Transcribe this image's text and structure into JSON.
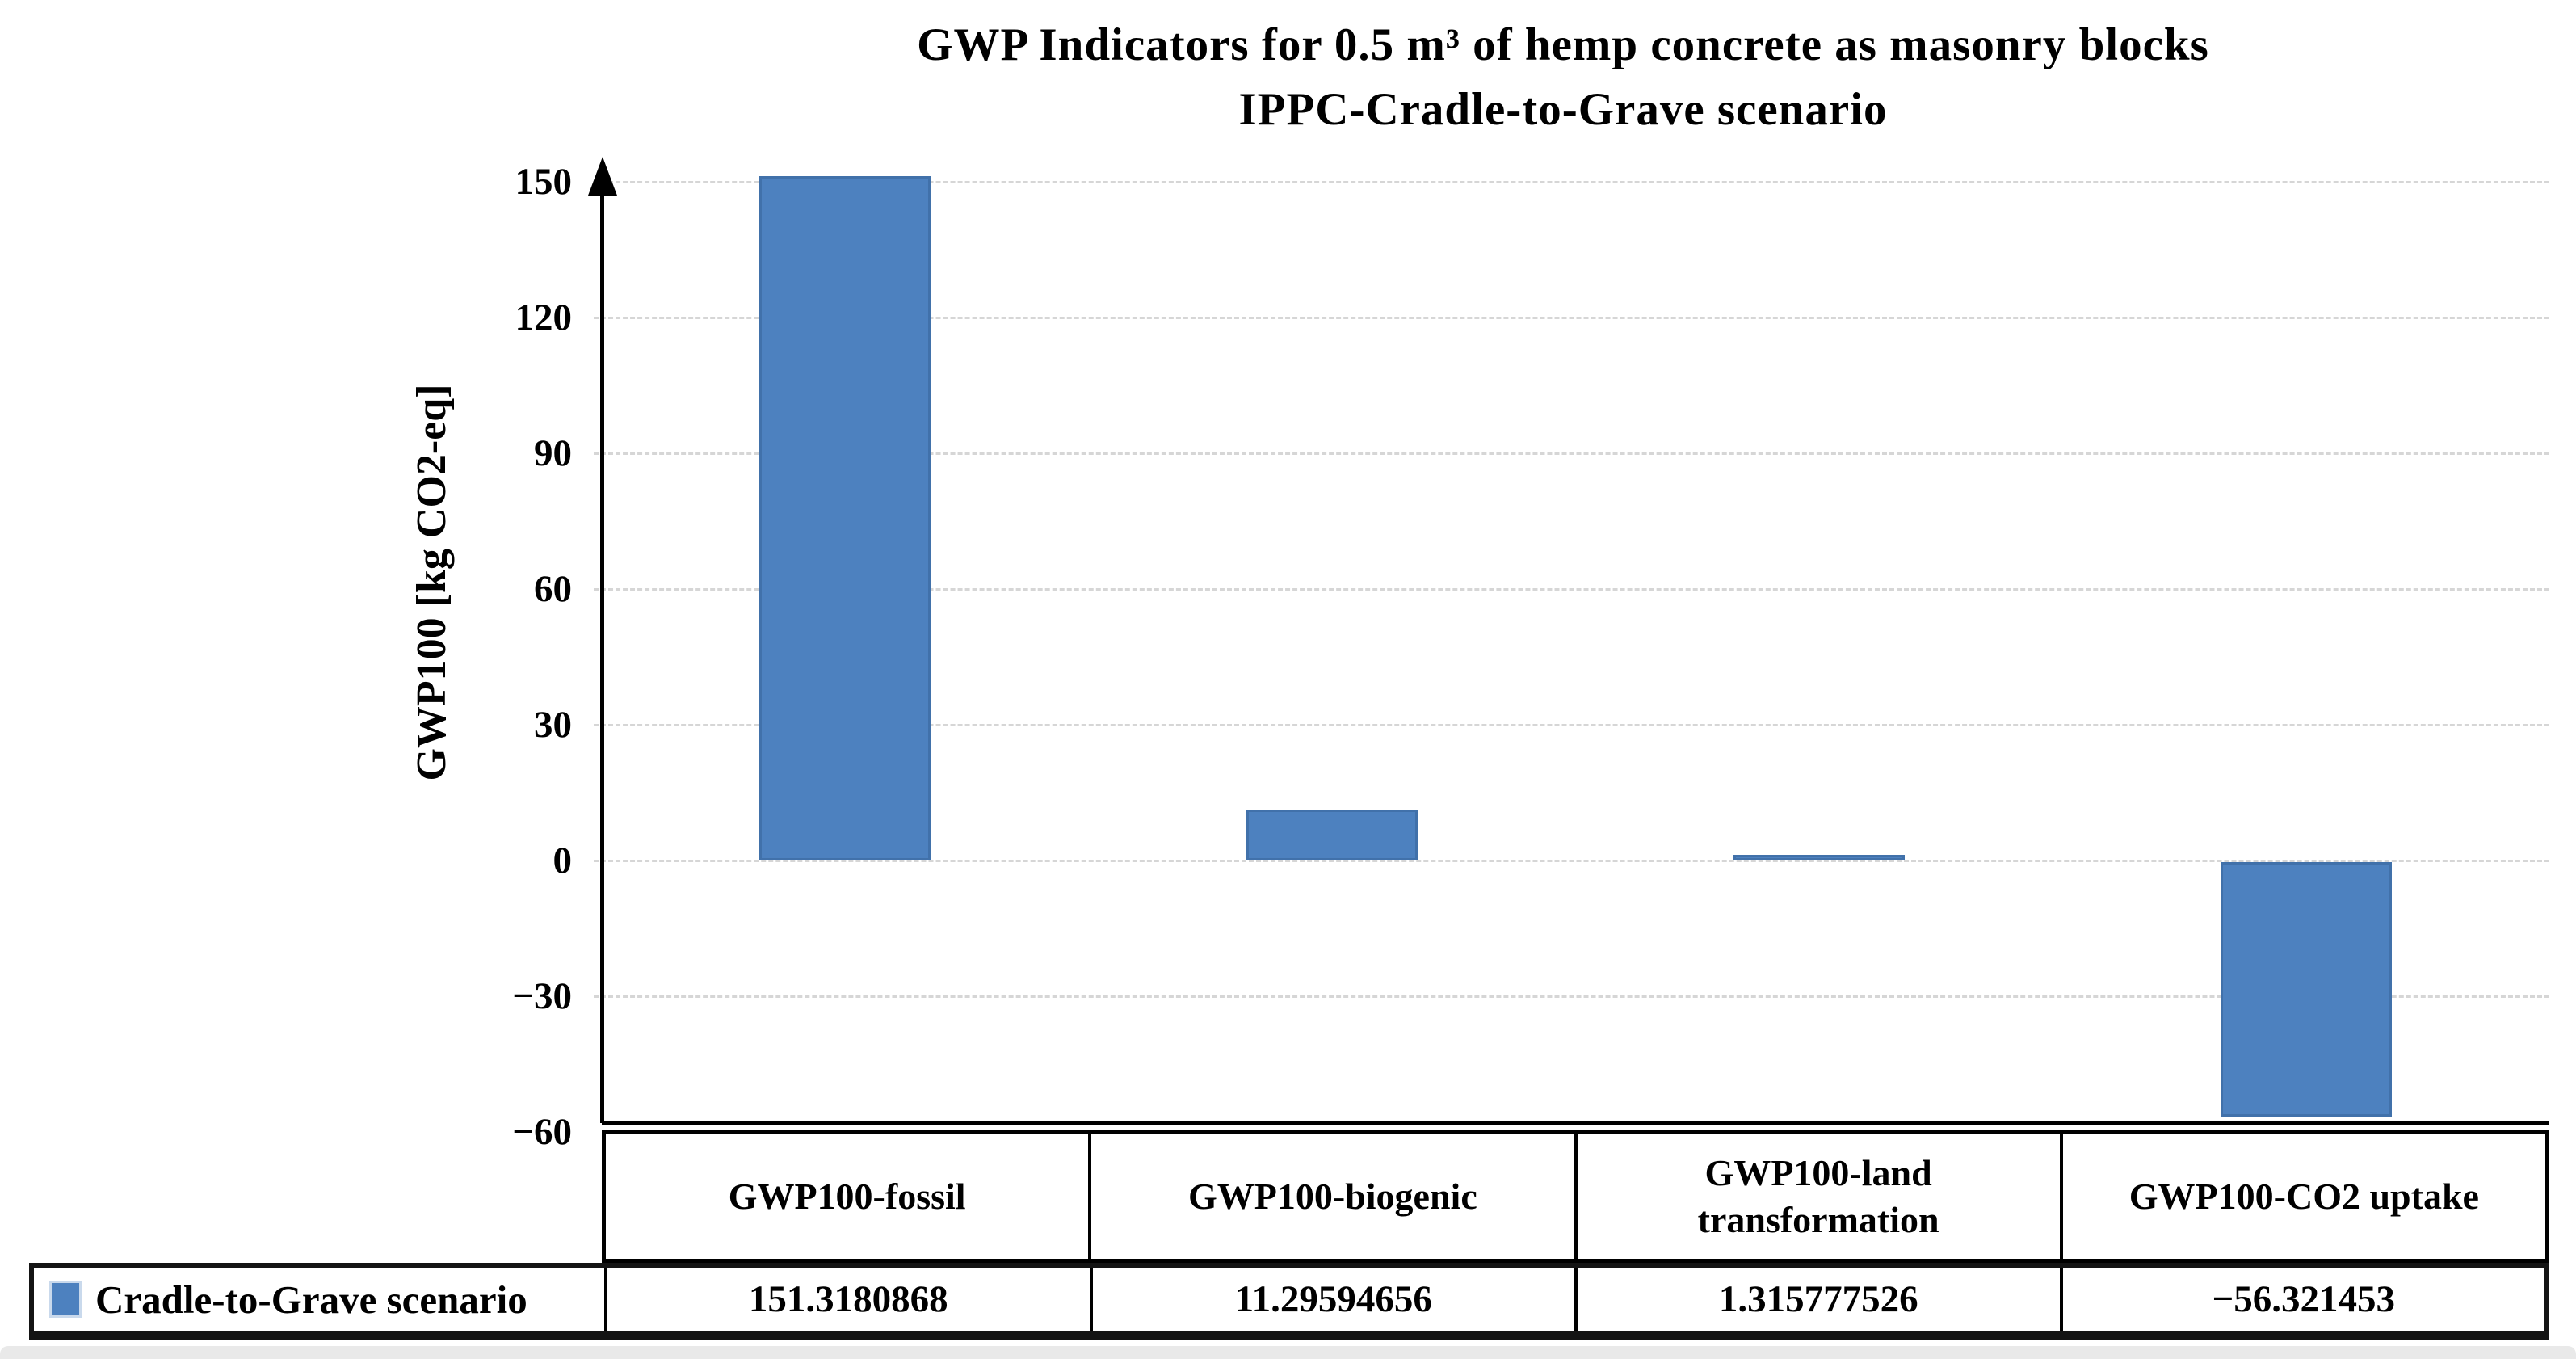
{
  "colors": {
    "bar": "#4d81bf",
    "bar_edge": "#2a5484",
    "gridline": "#d6d6d6",
    "axis": "#000000",
    "table_border": "#000000",
    "background": "#ffffff",
    "bottom_strip": "#e9e9e9"
  },
  "chart_data": {
    "type": "bar",
    "title": "GWP Indicators for 0.5 m³ of hemp concrete as masonry blocks",
    "subtitle": "IPPC-Cradle-to-Grave scenario",
    "categories": [
      "GWP100-fossil",
      "GWP100-biogenic",
      "GWP100-land transformation",
      "GWP100-CO2 uptake"
    ],
    "series": [
      {
        "name": "Cradle-to-Grave scenario",
        "values": [
          151.3180868,
          11.29594656,
          1.315777526,
          -56.321453
        ]
      }
    ],
    "value_labels": [
      "151.3180868",
      "11.29594656",
      "1.315777526",
      "−56.321453"
    ],
    "xlabel": "",
    "ylabel": "GWP100 [kg CO2-eq]",
    "ylim": [
      -60,
      150
    ],
    "yticks": [
      150,
      120,
      90,
      60,
      30,
      0,
      -30,
      -60
    ],
    "ytick_labels": [
      "150",
      "120",
      "90",
      "60",
      "30",
      "0",
      "−30",
      "−60"
    ],
    "grid": true,
    "gridline_style": "dashed",
    "legend_position": "bottom table row",
    "bar_color": "#4d81bf"
  }
}
